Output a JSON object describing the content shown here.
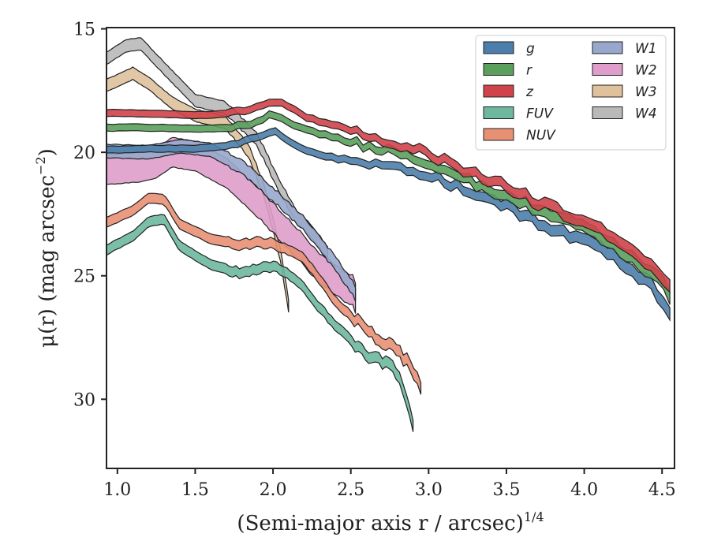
{
  "chart_data": {
    "type": "area",
    "xlabel": "(Semi-major axis r / arcsec)",
    "xlabel_superscript": "1/4",
    "ylabel": "μ(r) (mag arcsec",
    "ylabel_superscript": "−2",
    "ylabel_suffix": ")",
    "xlim": [
      0.93,
      4.58
    ],
    "ylim": [
      32.8,
      14.95
    ],
    "y_inverted": true,
    "xticks": [
      1.0,
      1.5,
      2.0,
      2.5,
      3.0,
      3.5,
      4.0,
      4.5
    ],
    "xtick_labels": [
      "1.0",
      "1.5",
      "2.0",
      "2.5",
      "3.0",
      "3.5",
      "4.0",
      "4.5"
    ],
    "yticks": [
      15,
      20,
      25,
      30
    ],
    "ytick_labels": [
      "15",
      "20",
      "25",
      "30"
    ],
    "grid": false,
    "legend_position": "top-right",
    "legend_columns": 2,
    "series": [
      {
        "name": "g",
        "color": "#4c7eab",
        "band_width": 0.28,
        "x": [
          0.93,
          1.2,
          1.5,
          1.75,
          1.85,
          1.95,
          2.0,
          2.05,
          2.15,
          2.3,
          2.5,
          2.8,
          3.0,
          3.3,
          3.5,
          3.8,
          4.0,
          4.2,
          4.4,
          4.5,
          4.55
        ],
        "y": [
          19.9,
          19.85,
          19.85,
          19.7,
          19.5,
          19.25,
          19.1,
          19.35,
          19.8,
          20.1,
          20.35,
          20.7,
          20.9,
          21.7,
          22.2,
          23.1,
          23.6,
          24.3,
          25.2,
          25.9,
          26.4
        ]
      },
      {
        "name": "r",
        "color": "#5aa05c",
        "band_width": 0.28,
        "x": [
          0.93,
          1.2,
          1.5,
          1.7,
          1.85,
          1.95,
          2.0,
          2.05,
          2.15,
          2.3,
          2.5,
          2.8,
          3.0,
          3.3,
          3.5,
          3.8,
          4.0,
          4.2,
          4.4,
          4.5,
          4.55
        ],
        "y": [
          19.0,
          19.0,
          19.05,
          19.0,
          18.85,
          18.6,
          18.45,
          18.55,
          18.95,
          19.25,
          19.6,
          20.0,
          20.4,
          21.3,
          21.75,
          22.6,
          23.1,
          23.85,
          24.7,
          25.3,
          25.8
        ]
      },
      {
        "name": "z",
        "color": "#d0434a",
        "band_width": 0.28,
        "x": [
          0.93,
          1.3,
          1.6,
          1.8,
          1.9,
          2.0,
          2.1,
          2.2,
          2.4,
          2.6,
          2.8,
          3.0,
          3.3,
          3.5,
          3.8,
          4.0,
          4.2,
          4.4,
          4.5,
          4.55
        ],
        "y": [
          18.4,
          18.45,
          18.5,
          18.35,
          18.15,
          17.95,
          18.1,
          18.55,
          18.9,
          19.3,
          19.65,
          20.05,
          20.9,
          21.4,
          22.3,
          22.8,
          23.5,
          24.4,
          25.0,
          25.5
        ]
      },
      {
        "name": "FUV",
        "color": "#6db89e",
        "band_width": 0.4,
        "x": [
          0.93,
          1.1,
          1.2,
          1.3,
          1.4,
          1.6,
          1.8,
          1.9,
          2.0,
          2.1,
          2.2,
          2.3,
          2.4,
          2.5,
          2.6,
          2.7,
          2.8,
          2.85,
          2.9
        ],
        "y": [
          23.95,
          23.4,
          22.8,
          22.7,
          23.8,
          24.55,
          24.9,
          24.7,
          24.6,
          24.9,
          25.5,
          26.3,
          27.0,
          27.6,
          28.2,
          28.5,
          28.9,
          29.7,
          31.2
        ]
      },
      {
        "name": "NUV",
        "color": "#e89074",
        "band_width": 0.4,
        "x": [
          0.93,
          1.1,
          1.2,
          1.3,
          1.4,
          1.6,
          1.8,
          1.9,
          2.0,
          2.1,
          2.2,
          2.3,
          2.4,
          2.5,
          2.6,
          2.7,
          2.8,
          2.9,
          2.95
        ],
        "y": [
          22.85,
          22.35,
          21.85,
          21.9,
          22.9,
          23.5,
          23.75,
          23.65,
          23.7,
          23.95,
          24.3,
          25.2,
          26.0,
          26.6,
          27.2,
          27.6,
          28.0,
          28.8,
          29.6
        ]
      },
      {
        "name": "W1",
        "color": "#98a8cc",
        "band_width": 0.55,
        "x": [
          0.93,
          1.2,
          1.4,
          1.6,
          1.8,
          2.0,
          2.2,
          2.4,
          2.53
        ],
        "y": [
          19.95,
          20.0,
          19.75,
          19.9,
          20.6,
          21.7,
          22.9,
          24.5,
          25.65
        ]
      },
      {
        "name": "W2",
        "color": "#de9dca",
        "band_width": 1.2,
        "x": [
          0.93,
          1.15,
          1.25,
          1.35,
          1.5,
          1.7,
          1.9,
          2.1,
          2.3,
          2.5,
          2.53
        ],
        "y": [
          20.7,
          20.6,
          20.45,
          20.0,
          20.15,
          20.85,
          22.0,
          23.3,
          24.7,
          25.6,
          25.8
        ]
      },
      {
        "name": "W3",
        "color": "#dfc19c",
        "band_width": 0.5,
        "x": [
          0.93,
          1.1,
          1.2,
          1.35,
          1.5,
          1.7,
          1.85,
          1.95,
          2.05,
          2.1
        ],
        "y": [
          17.3,
          16.8,
          17.2,
          18.0,
          18.5,
          18.8,
          20.0,
          21.7,
          24.2,
          26.2
        ]
      },
      {
        "name": "W4",
        "color": "#b9b9b9",
        "band_width": 0.5,
        "x": [
          0.93,
          1.05,
          1.15,
          1.3,
          1.5,
          1.7,
          1.9,
          2.05,
          2.15,
          2.25,
          2.35
        ],
        "y": [
          16.2,
          15.7,
          15.6,
          16.6,
          17.9,
          18.2,
          19.5,
          21.5,
          22.6,
          23.2,
          24.1
        ]
      }
    ]
  }
}
